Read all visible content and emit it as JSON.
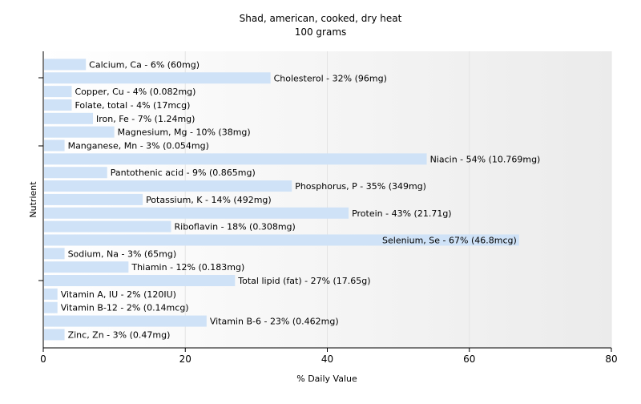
{
  "chart_data": {
    "type": "bar",
    "orientation": "horizontal",
    "title": "Shad, american, cooked, dry heat",
    "subtitle": "100 grams",
    "xlabel": "% Daily Value",
    "ylabel": "Nutrient",
    "xlim": [
      0,
      80
    ],
    "xticks": [
      0,
      20,
      40,
      60,
      80
    ],
    "grid": true,
    "colors": {
      "bar": "#cfe2f7",
      "grid": "#e4e4e4",
      "axis": "#000000"
    },
    "bars": [
      {
        "nutrient": "Calcium, Ca",
        "value": 6,
        "label": "Calcium, Ca - 6% (60mg)"
      },
      {
        "nutrient": "Cholesterol",
        "value": 32,
        "label": "Cholesterol - 32% (96mg)"
      },
      {
        "nutrient": "Copper, Cu",
        "value": 4,
        "label": "Copper, Cu - 4% (0.082mg)"
      },
      {
        "nutrient": "Folate, total",
        "value": 4,
        "label": "Folate, total - 4% (17mcg)"
      },
      {
        "nutrient": "Iron, Fe",
        "value": 7,
        "label": "Iron, Fe - 7% (1.24mg)"
      },
      {
        "nutrient": "Magnesium, Mg",
        "value": 10,
        "label": "Magnesium, Mg - 10% (38mg)"
      },
      {
        "nutrient": "Manganese, Mn",
        "value": 3,
        "label": "Manganese, Mn - 3% (0.054mg)"
      },
      {
        "nutrient": "Niacin",
        "value": 54,
        "label": "Niacin - 54% (10.769mg)"
      },
      {
        "nutrient": "Pantothenic acid",
        "value": 9,
        "label": "Pantothenic acid - 9% (0.865mg)"
      },
      {
        "nutrient": "Phosphorus, P",
        "value": 35,
        "label": "Phosphorus, P - 35% (349mg)"
      },
      {
        "nutrient": "Potassium, K",
        "value": 14,
        "label": "Potassium, K - 14% (492mg)"
      },
      {
        "nutrient": "Protein",
        "value": 43,
        "label": "Protein - 43% (21.71g)"
      },
      {
        "nutrient": "Riboflavin",
        "value": 18,
        "label": "Riboflavin - 18% (0.308mg)"
      },
      {
        "nutrient": "Selenium, Se",
        "value": 67,
        "label": "Selenium, Se - 67% (46.8mcg)"
      },
      {
        "nutrient": "Sodium, Na",
        "value": 3,
        "label": "Sodium, Na - 3% (65mg)"
      },
      {
        "nutrient": "Thiamin",
        "value": 12,
        "label": "Thiamin - 12% (0.183mg)"
      },
      {
        "nutrient": "Total lipid (fat)",
        "value": 27,
        "label": "Total lipid (fat) - 27% (17.65g)"
      },
      {
        "nutrient": "Vitamin A, IU",
        "value": 2,
        "label": "Vitamin A, IU - 2% (120IU)"
      },
      {
        "nutrient": "Vitamin B-12",
        "value": 2,
        "label": "Vitamin B-12 - 2% (0.14mcg)"
      },
      {
        "nutrient": "Vitamin B-6",
        "value": 23,
        "label": "Vitamin B-6 - 23% (0.462mg)"
      },
      {
        "nutrient": "Zinc, Zn",
        "value": 3,
        "label": "Zinc, Zn - 3% (0.47mg)"
      }
    ]
  }
}
